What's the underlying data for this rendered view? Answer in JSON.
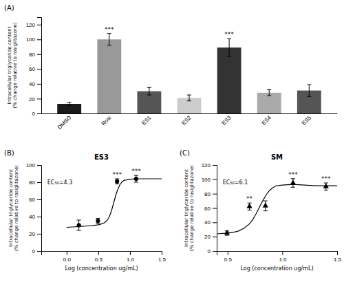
{
  "chart_data": [
    {
      "type": "bar",
      "panel_label": "(A)",
      "categories": [
        "DMSO",
        "Rosi",
        "ES1",
        "ES2",
        "ES3",
        "ES4",
        "ES5"
      ],
      "values": [
        13,
        100,
        30,
        21,
        89,
        28,
        31
      ],
      "errors": [
        2,
        8,
        5,
        4,
        12,
        4,
        8
      ],
      "colors": [
        "#1a1a1a",
        "#999999",
        "#555555",
        "#cccccc",
        "#333333",
        "#aaaaaa",
        "#555555"
      ],
      "annotations": [
        {
          "category": "Rosi",
          "text": "***"
        },
        {
          "category": "ES3",
          "text": "***"
        }
      ],
      "ylabel": "Intracellular triglyceride content\n(% change relative to rosiglitazone)",
      "ylim": [
        0,
        130
      ],
      "yticks": [
        0,
        20,
        40,
        60,
        80,
        100,
        120
      ]
    },
    {
      "type": "line",
      "panel_label": "(B)",
      "title": "ES3",
      "xlabel": "Log (concentration ug/mL)",
      "ylabel": "Intracellular triglyceride content\n(% change relative to rosiglitazone)",
      "xlim": [
        -0.4,
        1.5
      ],
      "ylim": [
        0,
        100
      ],
      "xticks": [
        {
          "value": 0,
          "label": "0.0"
        },
        0.5,
        {
          "value": 1,
          "label": "1.0"
        },
        1.5
      ],
      "yticks": [
        0,
        20,
        40,
        60,
        80,
        100
      ],
      "series": [
        {
          "type": "line",
          "color": "black",
          "x": [
            0.0,
            0.1,
            0.2,
            0.3,
            0.4,
            0.5,
            0.55,
            0.6,
            0.63,
            0.66,
            0.69,
            0.72,
            0.75,
            0.78,
            0.81,
            0.84,
            0.87,
            0.9,
            1.0,
            1.1,
            1.2,
            1.3,
            1.4,
            1.5
          ],
          "values": [
            27.5,
            28,
            28.5,
            29,
            29.5,
            30.5,
            31.5,
            33,
            35,
            38,
            43,
            50,
            58,
            66,
            72,
            77,
            80,
            82,
            83.5,
            84,
            84,
            84,
            84,
            84
          ]
        },
        {
          "type": "scatter",
          "marker": "circle",
          "color": "black",
          "x": [
            0.193,
            0.494,
            0.796,
            1.097
          ],
          "values": [
            30,
            35,
            81,
            84
          ],
          "errors": [
            6,
            3,
            3,
            4
          ]
        }
      ],
      "annotations": [
        {
          "text": "EC₅₀=4.3"
        },
        {
          "x": 0.796,
          "text": "***"
        },
        {
          "x": 1.097,
          "text": "***"
        }
      ]
    },
    {
      "type": "line",
      "panel_label": "(C)",
      "title": "SM",
      "xlabel": "Log (concentration ug/mL)",
      "ylabel": "Intracellular triglyceride content\n(% change relative to rosiglitazone)",
      "xlim": [
        0.4,
        1.5
      ],
      "ylim": [
        0,
        120
      ],
      "xticks": [
        0.5,
        {
          "value": 1,
          "label": "1.0"
        },
        1.5
      ],
      "yticks": [
        0,
        20,
        40,
        60,
        80,
        100,
        120
      ],
      "series": [
        {
          "type": "line",
          "color": "black",
          "x": [
            0.4,
            0.5,
            0.55,
            0.6,
            0.65,
            0.7,
            0.73,
            0.76,
            0.79,
            0.82,
            0.85,
            0.88,
            0.91,
            0.94,
            1.0,
            1.1,
            1.2,
            1.3,
            1.4,
            1.5
          ],
          "values": [
            24,
            25,
            26,
            28,
            32,
            38,
            44,
            52,
            61,
            70,
            78,
            84,
            88,
            91,
            92,
            93,
            92,
            91,
            91,
            91
          ]
        },
        {
          "type": "scatter",
          "marker": "triangle",
          "color": "black",
          "x": [
            0.494,
            0.699,
            0.845,
            1.097,
            1.398
          ],
          "values": [
            25,
            62,
            63,
            95,
            90
          ],
          "errors": [
            3,
            5,
            7,
            6,
            5
          ]
        }
      ],
      "annotations": [
        {
          "text": "EC₅₀=6.1"
        },
        {
          "x": 0.699,
          "text": "**"
        },
        {
          "x": 1.097,
          "text": "***"
        },
        {
          "x": 1.398,
          "text": "***"
        }
      ]
    }
  ]
}
